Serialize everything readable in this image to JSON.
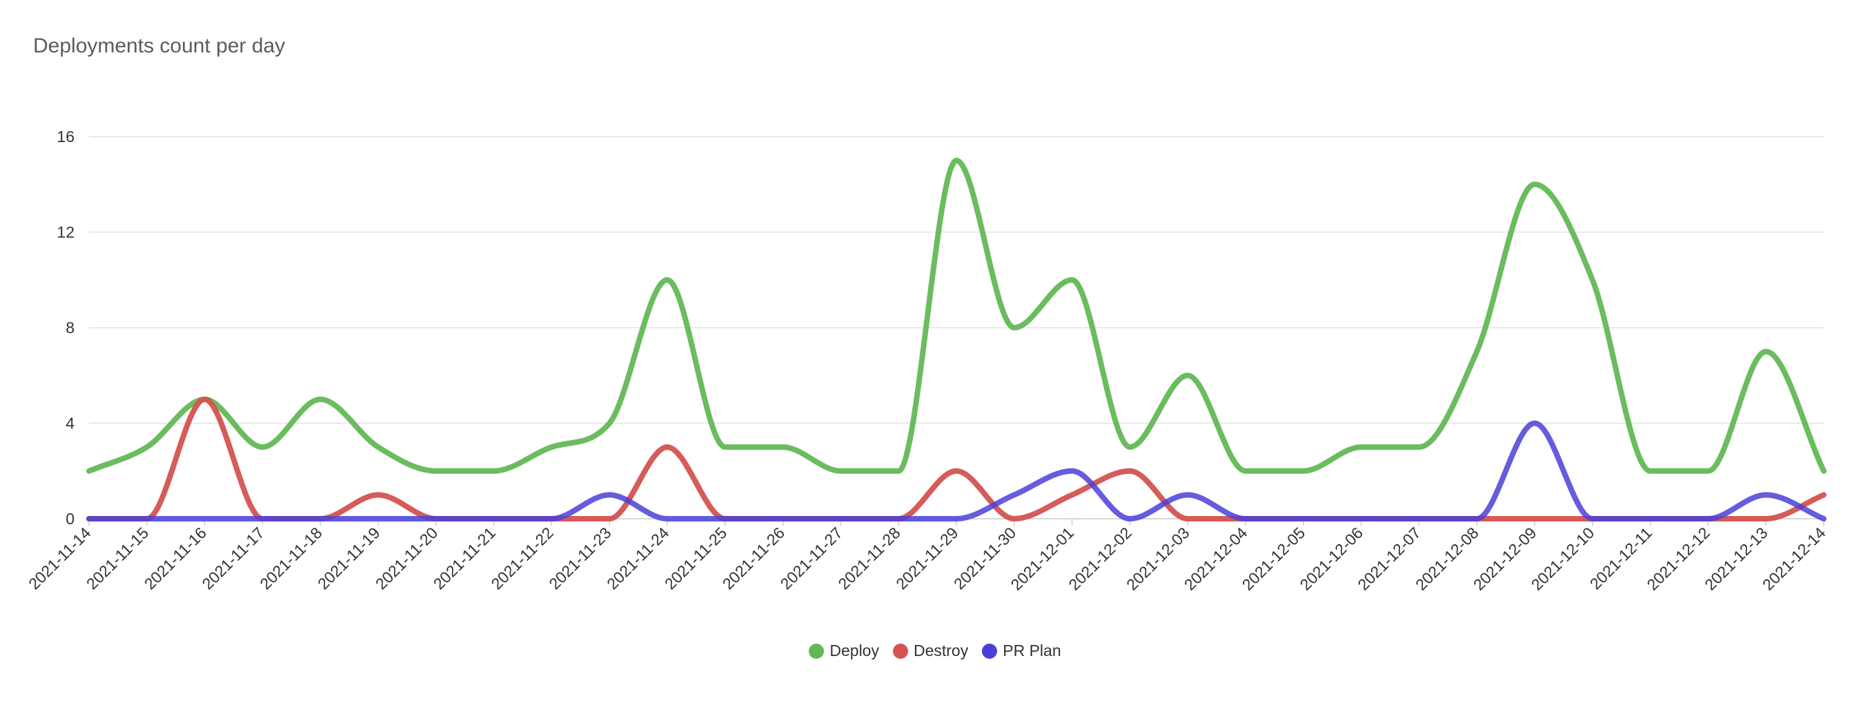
{
  "chart_data": {
    "type": "line",
    "title": "Deployments count per day",
    "xlabel": "",
    "ylabel": "",
    "ylim": [
      0,
      16
    ],
    "yticks": [
      0,
      4,
      8,
      12,
      16
    ],
    "grid": true,
    "legend_position": "bottom",
    "x": [
      "2021-11-14",
      "2021-11-15",
      "2021-11-16",
      "2021-11-17",
      "2021-11-18",
      "2021-11-19",
      "2021-11-20",
      "2021-11-21",
      "2021-11-22",
      "2021-11-23",
      "2021-11-24",
      "2021-11-25",
      "2021-11-26",
      "2021-11-27",
      "2021-11-28",
      "2021-11-29",
      "2021-11-30",
      "2021-12-01",
      "2021-12-02",
      "2021-12-03",
      "2021-12-04",
      "2021-12-05",
      "2021-12-06",
      "2021-12-07",
      "2021-12-08",
      "2021-12-09",
      "2021-12-10",
      "2021-12-11",
      "2021-12-12",
      "2021-12-13",
      "2021-12-14"
    ],
    "series": [
      {
        "name": "Deploy",
        "color": "#63b856",
        "values": [
          2,
          3,
          5,
          3,
          5,
          3,
          2,
          2,
          3,
          4,
          10,
          3,
          3,
          2,
          2,
          15,
          8,
          10,
          3,
          6,
          2,
          2,
          3,
          3,
          7,
          14,
          10,
          2,
          2,
          7,
          2
        ]
      },
      {
        "name": "Destroy",
        "color": "#d45350",
        "values": [
          0,
          0,
          5,
          0,
          0,
          1,
          0,
          0,
          0,
          0,
          3,
          0,
          0,
          0,
          0,
          2,
          0,
          1,
          2,
          0,
          0,
          0,
          0,
          0,
          0,
          0,
          0,
          0,
          0,
          0,
          1
        ]
      },
      {
        "name": "PR Plan",
        "color": "#4b3fd8",
        "values": [
          0,
          0,
          0,
          0,
          0,
          0,
          0,
          0,
          0,
          1,
          0,
          0,
          0,
          0,
          0,
          0,
          1,
          2,
          0,
          1,
          0,
          0,
          0,
          0,
          0,
          4,
          0,
          0,
          0,
          1,
          0
        ]
      }
    ]
  }
}
